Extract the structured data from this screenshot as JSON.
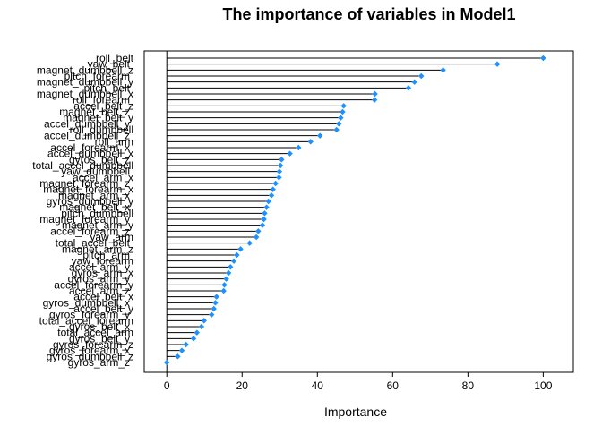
{
  "chart_data": {
    "type": "dotplot",
    "title": "The importance of variables in Model1",
    "xlabel": "Importance",
    "ylabel": "",
    "xlim": [
      -6,
      108
    ],
    "xticks": [
      0,
      20,
      40,
      60,
      80,
      100
    ],
    "grid": false,
    "legend": "none",
    "colors": {
      "point": "#1e90ff",
      "line": "#000000",
      "frame": "#000000"
    },
    "series": [
      {
        "values": [
          {
            "label": "roll_belt",
            "value": 100
          },
          {
            "label": "yaw_belt",
            "value": 87.8
          },
          {
            "label": "magnet_dumbbell_z",
            "value": 73.4
          },
          {
            "label": "pitch_forearm",
            "value": 67.6
          },
          {
            "label": "magnet_dumbbell_y",
            "value": 65.8
          },
          {
            "label": "pitch_belt",
            "value": 64.2
          },
          {
            "label": "magnet_dumbbell_x",
            "value": 55.3
          },
          {
            "label": "roll_forearm",
            "value": 55.2
          },
          {
            "label": "accel_belt_z",
            "value": 47.0
          },
          {
            "label": "magnet_belt_z",
            "value": 46.7
          },
          {
            "label": "magnet_belt_y",
            "value": 46.2
          },
          {
            "label": "accel_dumbbell_y",
            "value": 45.7
          },
          {
            "label": "roll_dumbbell",
            "value": 45.1
          },
          {
            "label": "accel_dumbbell_z",
            "value": 40.7
          },
          {
            "label": "roll_arm",
            "value": 38.2
          },
          {
            "label": "accel_forearm_x",
            "value": 35.0
          },
          {
            "label": "accel_dumbbell_x",
            "value": 32.7
          },
          {
            "label": "gyros_belt_z",
            "value": 30.5
          },
          {
            "label": "total_accel_dumbbell",
            "value": 30.2
          },
          {
            "label": "yaw_dumbbell",
            "value": 29.9
          },
          {
            "label": "accel_arm_x",
            "value": 29.8
          },
          {
            "label": "magnet_forearm_z",
            "value": 28.9
          },
          {
            "label": "magnet_forearm_x",
            "value": 28.2
          },
          {
            "label": "magnet_arm_x",
            "value": 27.8
          },
          {
            "label": "gyros_dumbbell_y",
            "value": 27.0
          },
          {
            "label": "magnet_belt_x",
            "value": 26.5
          },
          {
            "label": "pitch_dumbbell",
            "value": 26.0
          },
          {
            "label": "magnet_forearm_y",
            "value": 25.8
          },
          {
            "label": "magnet_arm_y",
            "value": 25.4
          },
          {
            "label": "accel_forearm_z",
            "value": 24.3
          },
          {
            "label": "yaw_arm",
            "value": 23.8
          },
          {
            "label": "total_accel_belt",
            "value": 22.0
          },
          {
            "label": "magnet_arm_z",
            "value": 19.6
          },
          {
            "label": "pitch_arm",
            "value": 18.6
          },
          {
            "label": "yaw_forearm",
            "value": 17.8
          },
          {
            "label": "accel_arm_y",
            "value": 16.9
          },
          {
            "label": "gyros_arm_x",
            "value": 16.4
          },
          {
            "label": "gyros_arm_y",
            "value": 15.8
          },
          {
            "label": "accel_forearm_y",
            "value": 15.3
          },
          {
            "label": "accel_arm_z",
            "value": 15.1
          },
          {
            "label": "accel_belt_x",
            "value": 13.2
          },
          {
            "label": "gyros_dumbbell_x",
            "value": 12.9
          },
          {
            "label": "accel_belt_y",
            "value": 12.5
          },
          {
            "label": "gyros_forearm_y",
            "value": 11.9
          },
          {
            "label": "total_accel_forearm",
            "value": 9.9
          },
          {
            "label": "gyros_belt_x",
            "value": 9.2
          },
          {
            "label": "total_accel_arm",
            "value": 8.0
          },
          {
            "label": "gyros_belt_y",
            "value": 7.1
          },
          {
            "label": "gyros_forearm_z",
            "value": 5.1
          },
          {
            "label": "gyros_forearm_x",
            "value": 4.0
          },
          {
            "label": "gyros_dumbbell_z",
            "value": 2.9
          },
          {
            "label": "gyros_arm_z",
            "value": 0.0
          }
        ]
      }
    ]
  }
}
